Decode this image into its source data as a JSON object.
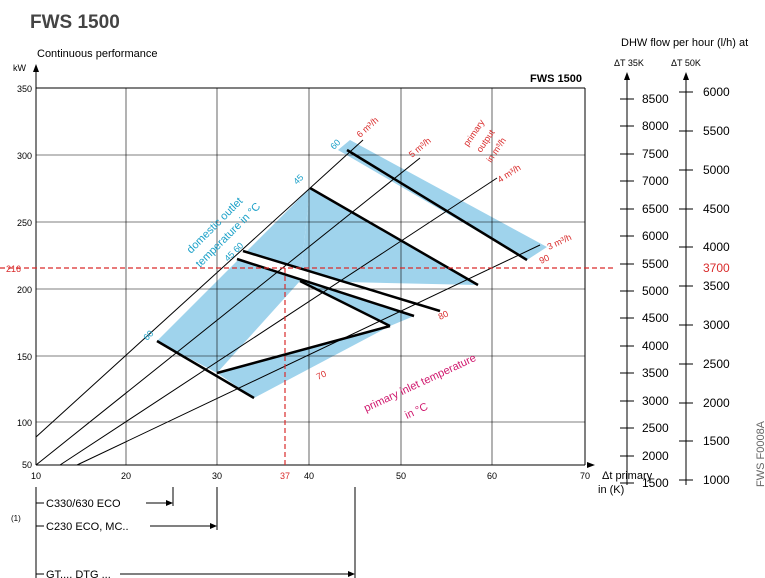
{
  "title": "FWS 1500",
  "chart_title": "FWS 1500",
  "y_axis": {
    "label": "Continuous performance",
    "unit": "kW",
    "ticks": [
      "350",
      "300",
      "250",
      "200",
      "150",
      "100",
      "50"
    ]
  },
  "x_axis": {
    "label_line1": "Δt primary",
    "label_line2": "in (K)",
    "ticks": [
      "10",
      "20",
      "30",
      "40",
      "50",
      "60",
      "70"
    ]
  },
  "right_panel": {
    "header": "DHW flow per hour (l/h) at",
    "col1_header": "ΔT 35K",
    "col2_header": "ΔT 50K",
    "col1_ticks": [
      "8500",
      "8000",
      "7500",
      "7000",
      "6500",
      "6000",
      "5500",
      "5000",
      "4500",
      "4000",
      "3500",
      "3000",
      "2500",
      "2000",
      "1500"
    ],
    "col2_ticks": [
      "6000",
      "5500",
      "5000",
      "4500",
      "4000",
      "3500",
      "3000",
      "2500",
      "2000",
      "1500",
      "1000"
    ]
  },
  "marker": {
    "y_value": "216",
    "x_value": "37",
    "flow_value": "3700"
  },
  "flow_lines": {
    "label_6": "6 m³/h",
    "label_5": "5 m³/h",
    "label_4": "4 m³/h",
    "label_3": "3 m³/h",
    "group_line1": "primary",
    "group_line2": "output",
    "group_line3": "in m³/h"
  },
  "outlet_temps": {
    "t60_top": "60",
    "t45_top": "45",
    "t4560": "45 60",
    "t60_low": "60",
    "label_line1": "domestic outlet",
    "label_line2": "temperature in °C"
  },
  "inlet_temps": {
    "t90": "90",
    "t80": "80",
    "t70": "70",
    "label_line1": "primary inlet temperature",
    "label_line2": "in °C"
  },
  "footnote": {
    "ref": "(1)",
    "row1": "C330/630 ECO",
    "row2": "C230 ECO, MC..",
    "row3": "GT..., DTG ..."
  },
  "side_code": "FWS  F0008A",
  "colors": {
    "fill": "#9fd3ec",
    "red": "#d92b2b",
    "cyan": "#1aa0c8",
    "magenta": "#d0196e",
    "title": "#444444"
  }
}
